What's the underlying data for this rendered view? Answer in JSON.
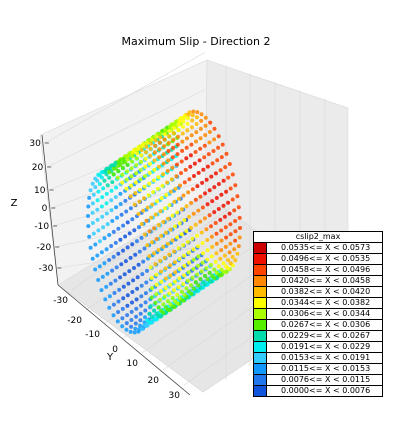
{
  "chart_data": {
    "type": "scatter3d",
    "title": "Maximum Slip - Direction 2",
    "xlabel": "",
    "ylabel": "Y",
    "zlabel": "Z",
    "y_ticks": [
      "-30",
      "-20",
      "-10",
      "0",
      "10",
      "20",
      "30"
    ],
    "z_ticks": [
      "30",
      "20",
      "10",
      "0",
      "-10",
      "-20",
      "-30"
    ],
    "ylim": [
      -30,
      30
    ],
    "zlim": [
      -35,
      35
    ],
    "shape": "cylindrical shell of points with axis along X; radius about 30",
    "legend": {
      "title": "cslip2_max",
      "placement": "lower-right",
      "entries": [
        {
          "label": "0.0535<= X < 0.0573",
          "color": "#cc0000"
        },
        {
          "label": "0.0496<= X < 0.0535",
          "color": "#ee1100"
        },
        {
          "label": "0.0458<= X < 0.0496",
          "color": "#ff4400"
        },
        {
          "label": "0.0420<= X < 0.0458",
          "color": "#ff8800"
        },
        {
          "label": "0.0382<= X < 0.0420",
          "color": "#ffbb00"
        },
        {
          "label": "0.0344<= X < 0.0382",
          "color": "#ffff00"
        },
        {
          "label": "0.0306<= X < 0.0344",
          "color": "#aaff00"
        },
        {
          "label": "0.0267<= X < 0.0306",
          "color": "#55ee00"
        },
        {
          "label": "0.0229<= X < 0.0267",
          "color": "#00ddaa"
        },
        {
          "label": "0.0191<= X < 0.0229",
          "color": "#00eeee"
        },
        {
          "label": "0.0153<= X < 0.0191",
          "color": "#33ccff"
        },
        {
          "label": "0.0115<= X < 0.0153",
          "color": "#1199ff"
        },
        {
          "label": "0.0076<= X < 0.0115",
          "color": "#2277ee"
        },
        {
          "label": "0.0000<= X < 0.0076",
          "color": "#1155dd"
        }
      ]
    }
  }
}
